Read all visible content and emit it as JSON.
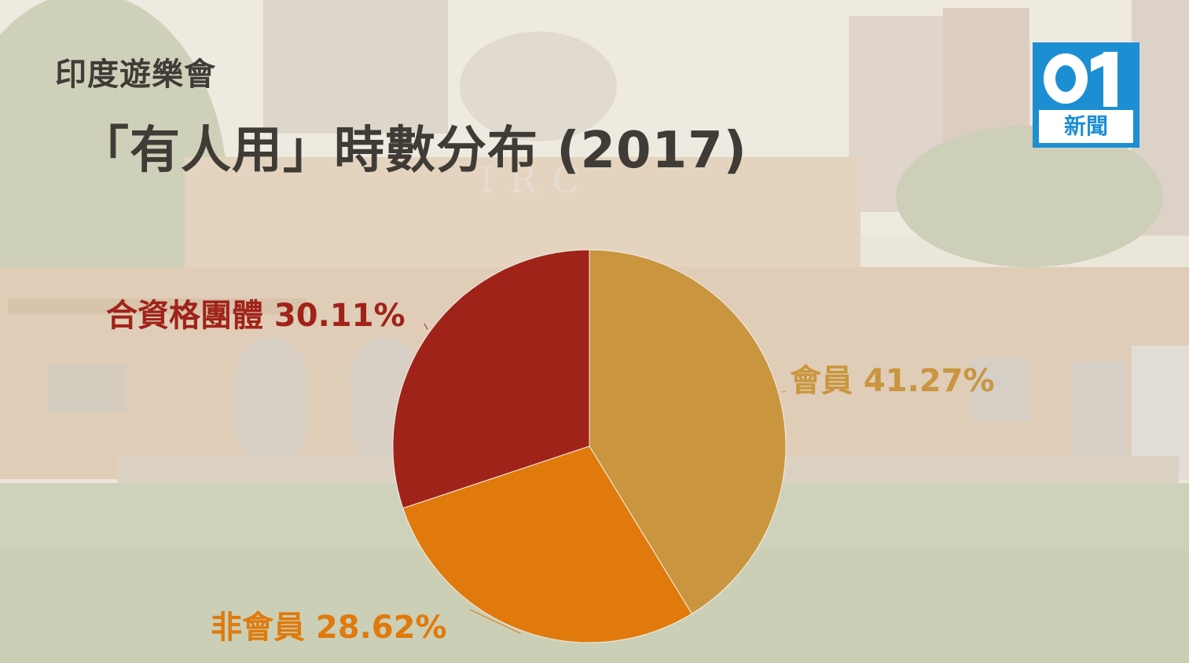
{
  "header": {
    "subtitle": "印度遊樂會",
    "title": "「有人用」時數分布 (2017)"
  },
  "logo": {
    "text": "新聞",
    "brand_color": "#1c8fd3"
  },
  "colors": {
    "members": "#c9963f",
    "non_members": "#e07a0c",
    "groups": "#a0231a"
  },
  "chart_data": {
    "type": "pie",
    "title": "「有人用」時數分布 (2017)",
    "slices": [
      {
        "label": "會員",
        "value": 41.27,
        "display": "會員 41.27%",
        "color": "#c9963f"
      },
      {
        "label": "非會員",
        "value": 28.62,
        "display": "非會員 28.62%",
        "color": "#e07a0c"
      },
      {
        "label": "合資格團體",
        "value": 30.11,
        "display": "合資格團體 30.11%",
        "color": "#a0231a"
      }
    ]
  }
}
